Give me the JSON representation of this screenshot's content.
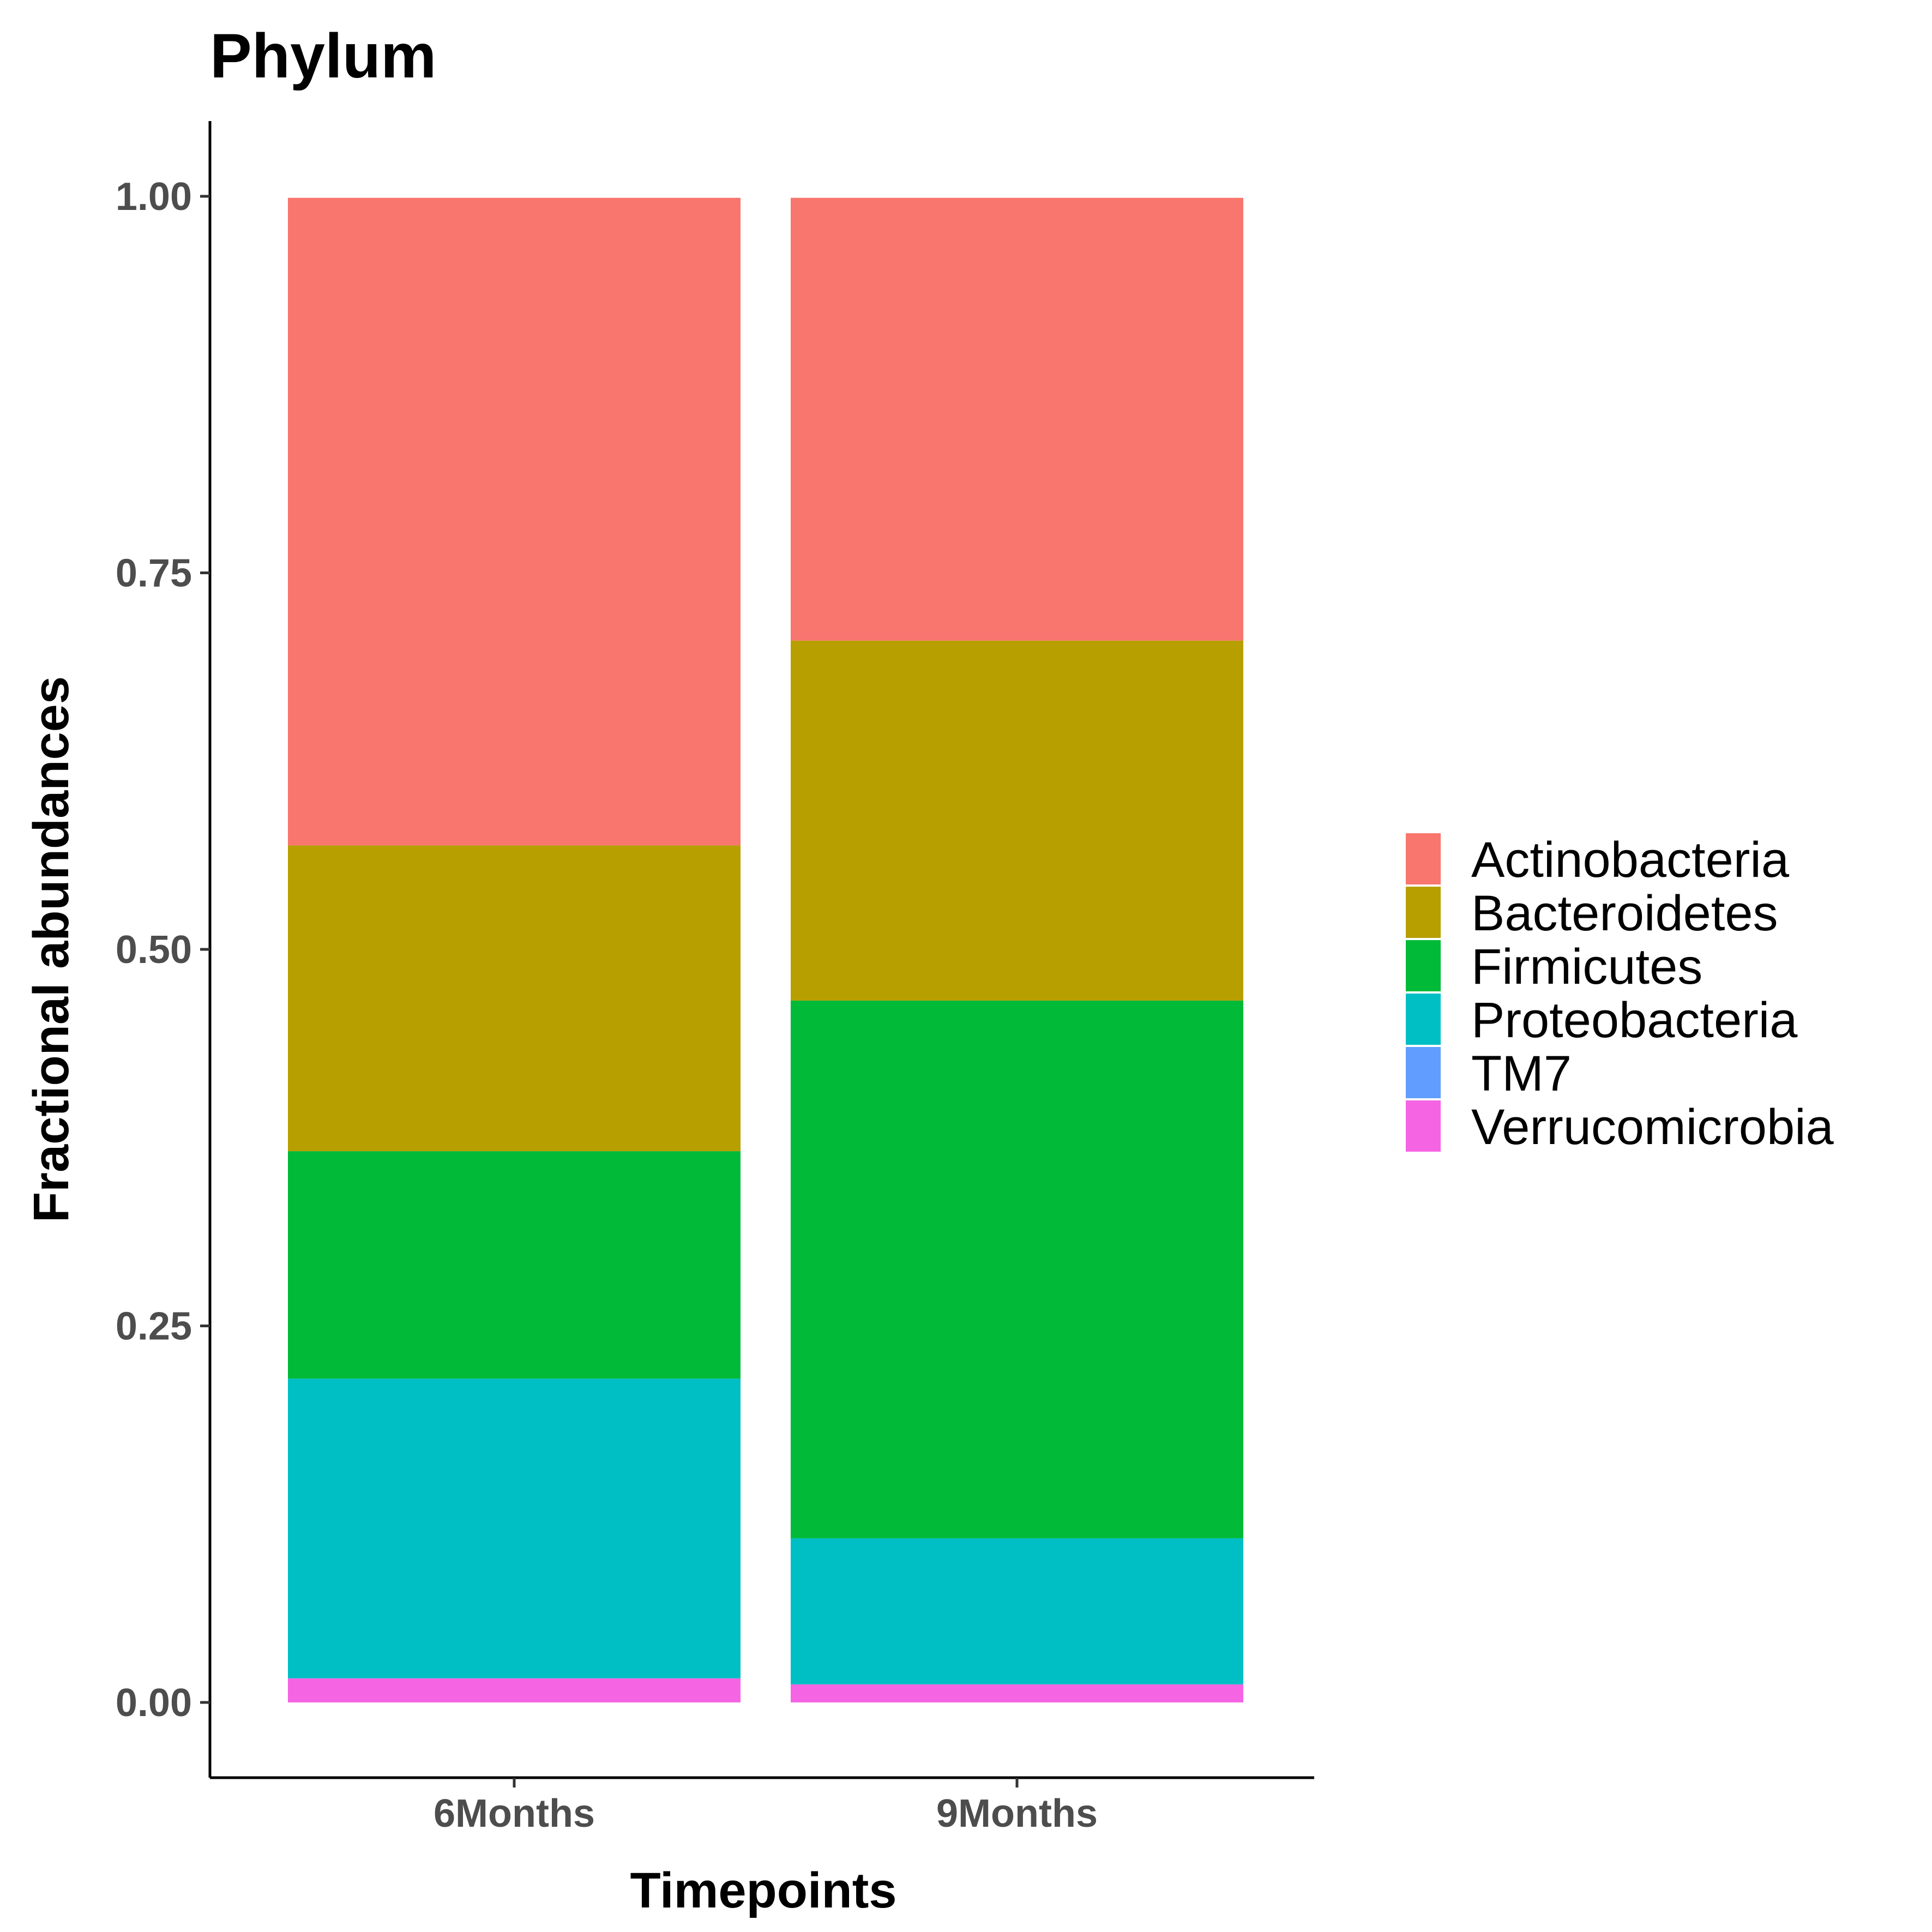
{
  "chart_data": {
    "type": "bar",
    "stacked": true,
    "title": "Phylum",
    "xlabel": "Timepoints",
    "ylabel": "Fractional abundances",
    "categories": [
      "6Months",
      "9Months"
    ],
    "ylim": [
      -0.05,
      1.05
    ],
    "yticks": [
      0.0,
      0.25,
      0.5,
      0.75,
      1.0
    ],
    "ytick_labels": [
      "0.00",
      "0.25",
      "0.50",
      "0.75",
      "1.00"
    ],
    "grid": false,
    "legend_position": "right",
    "series": [
      {
        "name": "Actinobacteria",
        "color": "#F8766D",
        "values": [
          0.43,
          0.294
        ]
      },
      {
        "name": "Bacteroidetes",
        "color": "#B79F00",
        "values": [
          0.203,
          0.239
        ]
      },
      {
        "name": "Firmicutes",
        "color": "#00BA38",
        "values": [
          0.151,
          0.357
        ]
      },
      {
        "name": "Proteobacteria",
        "color": "#00BFC4",
        "values": [
          0.199,
          0.097
        ]
      },
      {
        "name": "TM7",
        "color": "#619CFF",
        "values": [
          0.0,
          0.0
        ]
      },
      {
        "name": "Verrucomicrobia",
        "color": "#F564E3",
        "values": [
          0.016,
          0.012
        ]
      }
    ]
  }
}
